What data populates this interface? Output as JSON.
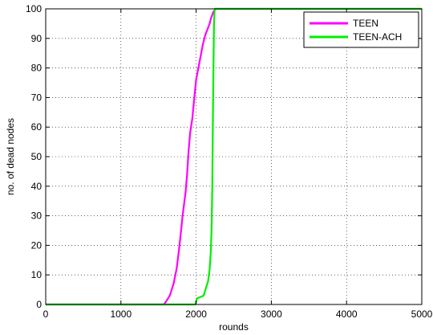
{
  "chart_data": {
    "type": "line",
    "xlabel": "rounds",
    "ylabel": "no. of dead nodes",
    "xlim": [
      0,
      5000
    ],
    "ylim": [
      0,
      100
    ],
    "xticks": [
      "0",
      "1000",
      "2000",
      "3000",
      "4000",
      "5000"
    ],
    "yticks": [
      "0",
      "10",
      "20",
      "30",
      "40",
      "50",
      "60",
      "70",
      "80",
      "90",
      "100"
    ],
    "grid": true,
    "legend_position": "top-right",
    "series": [
      {
        "name": "TEEN",
        "color": "#ff00ff",
        "points": [
          [
            0,
            0
          ],
          [
            1570,
            0
          ],
          [
            1600,
            1
          ],
          [
            1650,
            3
          ],
          [
            1700,
            7
          ],
          [
            1740,
            12
          ],
          [
            1770,
            18
          ],
          [
            1800,
            25
          ],
          [
            1820,
            30
          ],
          [
            1840,
            34
          ],
          [
            1860,
            38
          ],
          [
            1880,
            44
          ],
          [
            1900,
            52
          ],
          [
            1920,
            58
          ],
          [
            1950,
            63
          ],
          [
            1980,
            71
          ],
          [
            2000,
            76
          ],
          [
            2030,
            80
          ],
          [
            2060,
            84
          ],
          [
            2090,
            88
          ],
          [
            2120,
            91
          ],
          [
            2150,
            93
          ],
          [
            2180,
            95
          ],
          [
            2200,
            97
          ],
          [
            2230,
            99
          ],
          [
            2260,
            100
          ],
          [
            5000,
            100
          ]
        ]
      },
      {
        "name": "TEEN-ACH",
        "color": "#00ee00",
        "points": [
          [
            0,
            0
          ],
          [
            1990,
            0
          ],
          [
            2010,
            2
          ],
          [
            2100,
            3
          ],
          [
            2160,
            8
          ],
          [
            2180,
            12
          ],
          [
            2195,
            18
          ],
          [
            2205,
            25
          ],
          [
            2215,
            40
          ],
          [
            2222,
            60
          ],
          [
            2230,
            80
          ],
          [
            2238,
            95
          ],
          [
            2246,
            100
          ],
          [
            5000,
            100
          ]
        ]
      }
    ]
  }
}
